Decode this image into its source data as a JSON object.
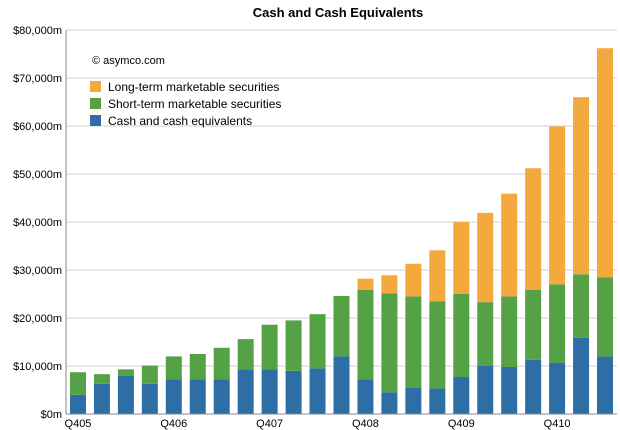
{
  "chart_data": {
    "type": "bar",
    "stacked": true,
    "title": "Cash and Cash Equivalents",
    "credit": "© asymco.com",
    "xlabel": "",
    "ylabel": "",
    "ylim": [
      0,
      80000
    ],
    "y_ticks": [
      0,
      10000,
      20000,
      30000,
      40000,
      50000,
      60000,
      70000,
      80000
    ],
    "y_tick_labels": [
      "$0m",
      "$10,000m",
      "$20,000m",
      "$30,000m",
      "$40,000m",
      "$50,000m",
      "$60,000m",
      "$70,000m",
      "$80,000m"
    ],
    "x_tick_labels": [
      {
        "index": 0,
        "label": "Q405"
      },
      {
        "index": 4,
        "label": "Q406"
      },
      {
        "index": 8,
        "label": "Q407"
      },
      {
        "index": 12,
        "label": "Q408"
      },
      {
        "index": 16,
        "label": "Q409"
      },
      {
        "index": 20,
        "label": "Q410"
      }
    ],
    "grid": true,
    "legend_position": "top-left",
    "categories": [
      "1",
      "2",
      "3",
      "4",
      "5",
      "6",
      "7",
      "8",
      "9",
      "10",
      "11",
      "12",
      "13",
      "14",
      "15",
      "16",
      "17",
      "18",
      "19",
      "20",
      "21",
      "22",
      "23"
    ],
    "series": [
      {
        "name": "Cash and cash equivalents",
        "color": "#2e6ea6",
        "values": [
          4000,
          6300,
          8000,
          6300,
          7200,
          7200,
          7200,
          9300,
          9300,
          9000,
          9500,
          12000,
          7200,
          4500,
          5500,
          5300,
          7700,
          10000,
          9800,
          11300,
          10700,
          15900,
          12000
        ]
      },
      {
        "name": "Short-term marketable securities",
        "color": "#54a146",
        "values": [
          4700,
          2000,
          1300,
          3800,
          4800,
          5300,
          6600,
          6300,
          9300,
          10500,
          11300,
          12600,
          18700,
          20600,
          19000,
          18200,
          17300,
          13300,
          14700,
          14600,
          16300,
          13200,
          16500
        ]
      },
      {
        "name": "Long-term marketable securities",
        "color": "#f4a93f",
        "values": [
          0,
          0,
          0,
          0,
          0,
          0,
          0,
          0,
          0,
          0,
          0,
          0,
          2300,
          3800,
          6800,
          10600,
          15000,
          18600,
          21400,
          25300,
          32900,
          36900,
          47700
        ]
      }
    ],
    "legend_order": [
      "Long-term marketable securities",
      "Short-term marketable securities",
      "Cash and cash equivalents"
    ]
  }
}
